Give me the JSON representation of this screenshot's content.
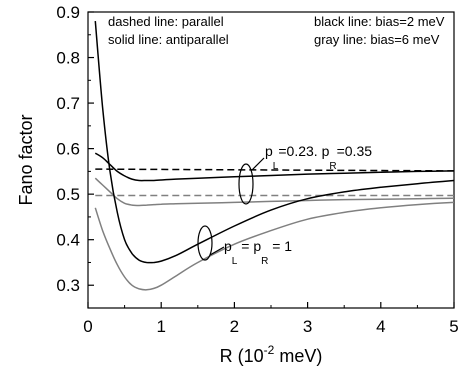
{
  "chart_data": {
    "type": "line",
    "xlabel": "R (10",
    "xlabel_exp": "-2",
    "xlabel_unit": " meV)",
    "ylabel": "Fano factor",
    "xlim": [
      0,
      5
    ],
    "ylim": [
      0.25,
      0.9
    ],
    "xticks": [
      0,
      1,
      2,
      3,
      4,
      5
    ],
    "xtick_labels": [
      "0",
      "1",
      "2",
      "3",
      "4",
      "5"
    ],
    "yticks": [
      0.3,
      0.4,
      0.5,
      0.6,
      0.7,
      0.8,
      0.9
    ],
    "ytick_labels": [
      "0.3",
      "0.4",
      "0.5",
      "0.6",
      "0.7",
      "0.8",
      "0.9"
    ],
    "grid": false,
    "legend_notes": {
      "dashed": "dashed line: parallel",
      "solid": "solid line: antiparallel",
      "black": "black line: bias=2 meV",
      "gray": "gray line: bias=6 meV"
    },
    "annotations": {
      "group1": {
        "prefix": "p",
        "sub1": "L",
        "middle": "=0.23. p",
        "sub2": "R",
        "suffix": "=0.35"
      },
      "group2": {
        "prefix": "p",
        "sub1": "L",
        "middle": " = p",
        "sub2": "R",
        "suffix": " = 1"
      }
    },
    "colors": {
      "black": "#000000",
      "gray": "#808080"
    },
    "series": [
      {
        "color": "black",
        "style": "dashed",
        "x": [
          0.1,
          5.0
        ],
        "y": [
          0.555,
          0.551
        ]
      },
      {
        "color": "gray",
        "style": "dashed",
        "x": [
          0.1,
          5.0
        ],
        "y": [
          0.497,
          0.497
        ]
      },
      {
        "color": "black",
        "style": "solid",
        "x": [
          0.1,
          0.2,
          0.3,
          0.4,
          0.5,
          0.6,
          0.7,
          0.8,
          0.9,
          1.0,
          1.2,
          1.5,
          2.0,
          2.5,
          3.0,
          3.5,
          4.0,
          4.5,
          5.0
        ],
        "y": [
          0.59,
          0.58,
          0.565,
          0.55,
          0.54,
          0.533,
          0.53,
          0.53,
          0.53,
          0.531,
          0.533,
          0.535,
          0.538,
          0.541,
          0.544,
          0.546,
          0.548,
          0.55,
          0.551
        ]
      },
      {
        "color": "gray",
        "style": "solid",
        "x": [
          0.1,
          0.2,
          0.3,
          0.4,
          0.5,
          0.6,
          0.7,
          0.8,
          0.9,
          1.0,
          1.2,
          1.5,
          2.0,
          2.5,
          3.0,
          3.5,
          4.0,
          4.5,
          5.0
        ],
        "y": [
          0.535,
          0.52,
          0.505,
          0.49,
          0.48,
          0.476,
          0.475,
          0.476,
          0.477,
          0.478,
          0.479,
          0.48,
          0.482,
          0.484,
          0.486,
          0.488,
          0.489,
          0.49,
          0.491
        ]
      },
      {
        "color": "black",
        "style": "solid",
        "x": [
          0.1,
          0.2,
          0.3,
          0.4,
          0.5,
          0.6,
          0.7,
          0.8,
          0.9,
          1.0,
          1.2,
          1.5,
          2.0,
          2.5,
          3.0,
          3.5,
          4.0,
          4.5,
          5.0
        ],
        "y": [
          0.88,
          0.69,
          0.55,
          0.46,
          0.4,
          0.37,
          0.355,
          0.35,
          0.35,
          0.353,
          0.365,
          0.39,
          0.43,
          0.465,
          0.49,
          0.505,
          0.515,
          0.523,
          0.53
        ]
      },
      {
        "color": "gray",
        "style": "solid",
        "x": [
          0.1,
          0.2,
          0.3,
          0.4,
          0.5,
          0.6,
          0.7,
          0.8,
          0.9,
          1.0,
          1.2,
          1.5,
          2.0,
          2.5,
          3.0,
          3.5,
          4.0,
          4.5,
          5.0
        ],
        "y": [
          0.47,
          0.42,
          0.38,
          0.345,
          0.318,
          0.3,
          0.292,
          0.29,
          0.293,
          0.3,
          0.32,
          0.35,
          0.39,
          0.42,
          0.445,
          0.46,
          0.47,
          0.477,
          0.482
        ]
      }
    ]
  }
}
